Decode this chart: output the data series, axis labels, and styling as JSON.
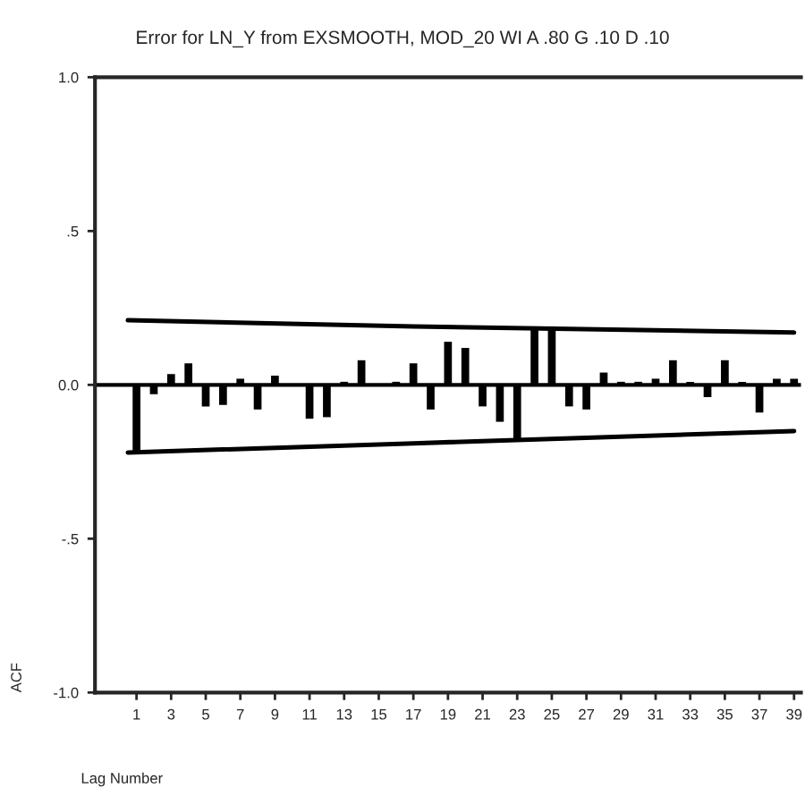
{
  "chart_data": {
    "type": "bar",
    "title": "Error for LN_Y from EXSMOOTH, MOD_20 WI A .80 G .10 D .10",
    "xlabel": "Lag Number",
    "ylabel": "ACF",
    "x": [
      1,
      2,
      3,
      4,
      5,
      6,
      7,
      8,
      9,
      10,
      11,
      12,
      13,
      14,
      15,
      16,
      17,
      18,
      19,
      20,
      21,
      22,
      23,
      24,
      25,
      26,
      27,
      28,
      29,
      30,
      31,
      32,
      33,
      34,
      35,
      36,
      37,
      38,
      39
    ],
    "series": [
      {
        "color": "#000000",
        "values": [
          -0.22,
          -0.03,
          0.035,
          0.07,
          -0.07,
          -0.065,
          0.02,
          -0.08,
          0.03,
          0.0,
          -0.11,
          -0.105,
          0.01,
          0.08,
          0.0,
          0.01,
          0.07,
          -0.08,
          0.14,
          0.12,
          -0.07,
          -0.12,
          -0.18,
          0.19,
          0.19,
          -0.07,
          -0.08,
          0.04,
          0.01,
          0.01,
          0.02,
          0.08,
          0.01,
          -0.04,
          0.08,
          0.01,
          -0.09,
          0.02,
          0.02
        ]
      },
      {
        "type": "line",
        "color": "#000000",
        "x": [
          0.5,
          17,
          39
        ],
        "values": [
          0.21,
          0.19,
          0.17
        ]
      },
      {
        "type": "line",
        "color": "#000000",
        "x": [
          0.5,
          17,
          39
        ],
        "values": [
          -0.22,
          -0.19,
          -0.15
        ]
      }
    ],
    "ref_lines": [
      {
        "axis": "y",
        "value": 0,
        "color": "#000000"
      }
    ],
    "xlim": [
      -1.4,
      39.4
    ],
    "ylim": [
      -1.0,
      1.0
    ],
    "xticks": [
      1,
      3,
      5,
      7,
      9,
      11,
      13,
      15,
      17,
      19,
      21,
      23,
      25,
      27,
      29,
      31,
      33,
      35,
      37,
      39
    ],
    "yticks": [
      {
        "value": -1.0,
        "label": "-1.0"
      },
      {
        "value": -0.5,
        "label": "-.5"
      },
      {
        "value": 0.0,
        "label": "0.0"
      },
      {
        "value": 0.5,
        "label": ".5"
      },
      {
        "value": 1.0,
        "label": "1.0"
      }
    ],
    "grid": false,
    "legend": false
  }
}
